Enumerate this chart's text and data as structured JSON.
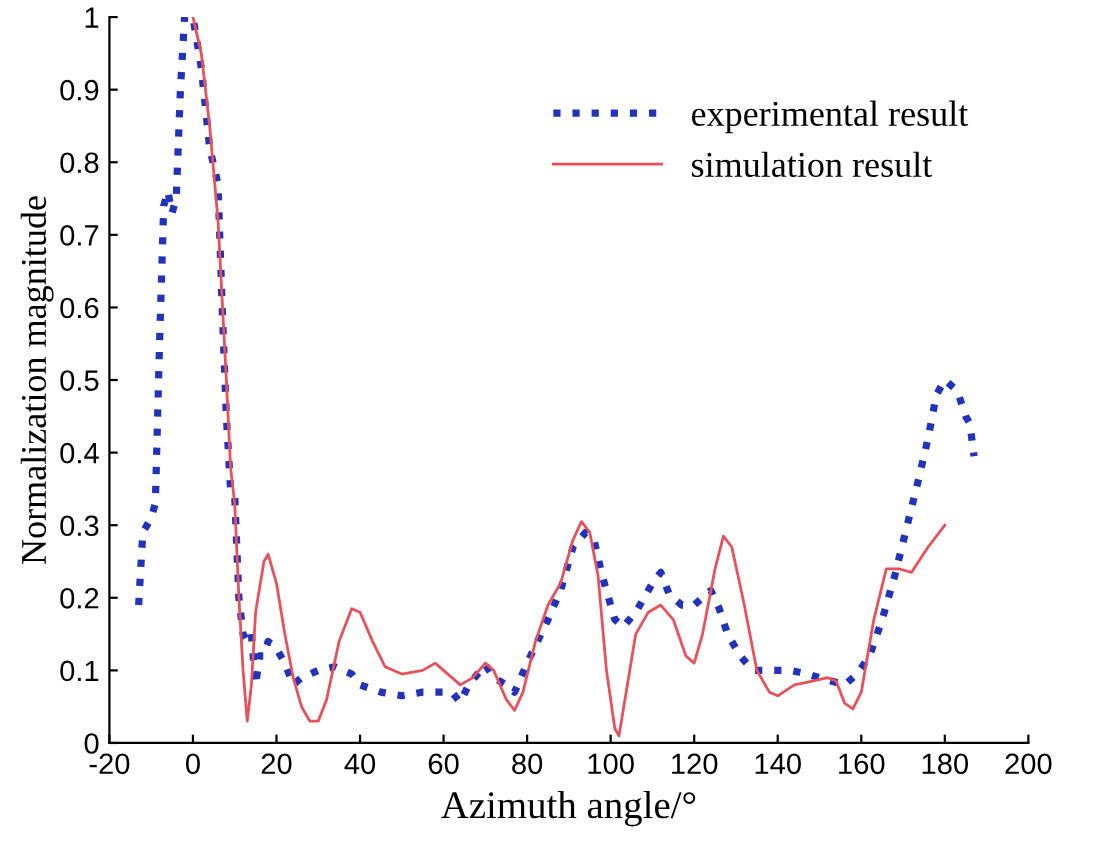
{
  "chart_data": {
    "type": "line",
    "xlabel": "Azimuth angle/°",
    "ylabel": "Normalization magnitude",
    "xlim": [
      -20,
      200
    ],
    "xticks": [
      -20,
      0,
      20,
      40,
      60,
      80,
      100,
      120,
      140,
      160,
      180,
      200
    ],
    "ylim": [
      0,
      1
    ],
    "yticks": [
      0,
      0.1,
      0.2,
      0.3,
      0.4,
      0.5,
      0.6,
      0.7,
      0.8,
      0.9,
      1
    ],
    "legend": "top right",
    "grid": false,
    "series": [
      {
        "name": "experimental result",
        "color": "#2233bb",
        "line_style": "dotted",
        "x": [
          -13,
          -12,
          -10,
          -9,
          -8,
          -7,
          -6,
          -5,
          -4,
          -3,
          -2,
          0,
          2,
          4,
          6,
          7,
          8,
          9,
          10,
          11,
          12,
          13,
          14,
          15,
          16,
          17,
          18,
          20,
          22,
          24,
          26,
          30,
          34,
          38,
          40,
          45,
          50,
          55,
          58,
          60,
          62,
          64,
          66,
          70,
          72,
          75,
          77,
          80,
          85,
          88,
          91,
          94,
          96,
          98,
          101,
          103,
          106,
          108,
          110,
          112,
          114,
          117,
          120,
          122,
          124,
          126,
          128,
          131,
          134,
          137,
          140,
          143,
          147,
          150,
          153,
          156,
          159,
          162,
          165,
          168,
          171,
          174,
          176,
          178,
          180,
          182,
          183,
          185,
          186,
          187
        ],
        "values": [
          0.19,
          0.29,
          0.31,
          0.33,
          0.55,
          0.74,
          0.76,
          0.73,
          0.75,
          0.9,
          1.0,
          1.0,
          0.93,
          0.82,
          0.77,
          0.6,
          0.45,
          0.35,
          0.34,
          0.2,
          0.15,
          0.14,
          0.15,
          0.08,
          0.12,
          0.12,
          0.14,
          0.13,
          0.11,
          0.08,
          0.09,
          0.1,
          0.105,
          0.095,
          0.08,
          0.07,
          0.065,
          0.07,
          0.07,
          0.07,
          0.07,
          0.056,
          0.08,
          0.108,
          0.09,
          0.08,
          0.07,
          0.11,
          0.17,
          0.21,
          0.27,
          0.29,
          0.28,
          0.23,
          0.17,
          0.16,
          0.18,
          0.2,
          0.22,
          0.235,
          0.205,
          0.19,
          0.19,
          0.2,
          0.21,
          0.185,
          0.15,
          0.12,
          0.1,
          0.1,
          0.1,
          0.1,
          0.095,
          0.09,
          0.085,
          0.08,
          0.095,
          0.12,
          0.17,
          0.23,
          0.3,
          0.37,
          0.42,
          0.48,
          0.5,
          0.49,
          0.485,
          0.45,
          0.44,
          0.395
        ]
      },
      {
        "name": "simulation result",
        "color": "#e8505a",
        "line_style": "solid",
        "x": [
          0,
          2,
          4,
          6,
          8,
          9,
          10,
          11,
          12,
          13,
          14,
          15,
          17,
          18,
          20,
          22,
          24,
          26,
          28,
          30,
          32,
          35,
          38,
          40,
          43,
          46,
          50,
          55,
          58,
          62,
          64,
          67,
          70,
          72,
          75,
          77,
          79,
          82,
          85,
          88,
          91,
          93,
          95,
          97,
          99,
          101,
          102,
          104,
          106,
          109,
          112,
          115,
          118,
          120,
          122,
          125,
          127,
          129,
          132,
          135,
          138,
          140,
          144,
          148,
          152,
          154,
          156,
          158,
          160,
          163,
          166,
          169,
          172,
          176,
          180
        ],
        "values": [
          1.0,
          0.95,
          0.85,
          0.72,
          0.5,
          0.38,
          0.33,
          0.2,
          0.1,
          0.03,
          0.08,
          0.18,
          0.25,
          0.26,
          0.22,
          0.15,
          0.09,
          0.05,
          0.03,
          0.03,
          0.06,
          0.14,
          0.185,
          0.18,
          0.14,
          0.105,
          0.095,
          0.1,
          0.11,
          0.09,
          0.08,
          0.09,
          0.11,
          0.1,
          0.06,
          0.045,
          0.07,
          0.14,
          0.19,
          0.22,
          0.28,
          0.305,
          0.29,
          0.23,
          0.1,
          0.02,
          0.01,
          0.08,
          0.15,
          0.18,
          0.19,
          0.17,
          0.12,
          0.11,
          0.15,
          0.24,
          0.285,
          0.27,
          0.19,
          0.1,
          0.07,
          0.065,
          0.08,
          0.085,
          0.09,
          0.085,
          0.055,
          0.047,
          0.07,
          0.17,
          0.24,
          0.24,
          0.235,
          0.27,
          0.3
        ]
      }
    ]
  }
}
